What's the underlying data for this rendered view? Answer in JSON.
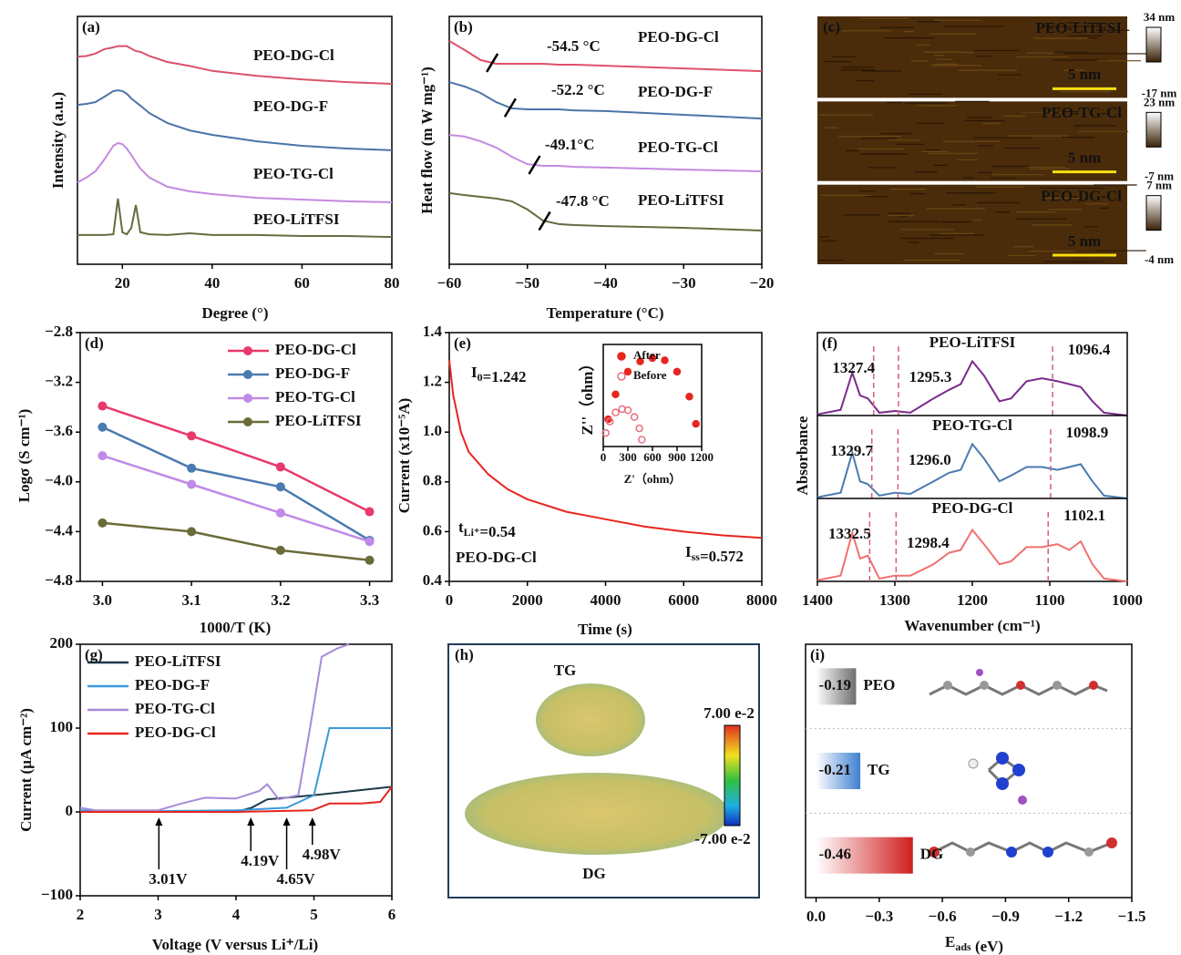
{
  "chart_data": [
    {
      "type": "line",
      "panel": "(a)",
      "xlabel": "Degree (°)",
      "ylabel": "Intensity (a.u.)",
      "xlim": [
        10,
        80
      ],
      "ylim": [
        0,
        100
      ],
      "xticks": [
        20,
        40,
        60,
        80
      ],
      "x": [
        10,
        12,
        14,
        16,
        18,
        19,
        20,
        21,
        22,
        23,
        24,
        26,
        30,
        35,
        40,
        50,
        60,
        70,
        80
      ],
      "series": [
        {
          "name": "PEO-DG-Cl",
          "color": "#d9536a",
          "values": [
            83.8,
            84,
            85,
            86.8,
            87.5,
            88,
            88,
            88,
            87,
            86,
            85.7,
            84,
            81.6,
            80,
            78,
            76,
            74.6,
            73.5,
            72.8
          ]
        },
        {
          "name": "PEO-DG-F",
          "color": "#4a74a8",
          "values": [
            64.3,
            64.7,
            65.4,
            67.6,
            69.9,
            70.2,
            69.9,
            68.8,
            66.9,
            65.4,
            64,
            61,
            57,
            54,
            52.2,
            49.6,
            47.8,
            46.7,
            46
          ]
        },
        {
          "name": "PEO-TG-Cl",
          "color": "#c48ae0",
          "values": [
            33,
            35,
            37.5,
            42.3,
            47.8,
            48.9,
            48.5,
            46.7,
            44.1,
            41.2,
            38.6,
            35,
            31.3,
            29.4,
            28.3,
            26.8,
            26.1,
            25.4,
            25
          ]
        },
        {
          "name": "PEO-LiTFSI",
          "color": "#6a6a40",
          "values": [
            11.8,
            11.8,
            11.8,
            11.8,
            12.1,
            26.5,
            12.9,
            12.1,
            14.7,
            23.9,
            12.9,
            12.1,
            11.8,
            12.5,
            11.8,
            11.8,
            11.4,
            11.4,
            11
          ]
        }
      ]
    },
    {
      "type": "line",
      "panel": "(b)",
      "xlabel": "Temperature (°C)",
      "ylabel": "Heat flow (m W mg⁻¹)",
      "xlim": [
        -60,
        -20
      ],
      "ylim": [
        0,
        100
      ],
      "xticks": [
        {
          "value": -60,
          "label": "−60"
        },
        {
          "value": -50,
          "label": "−50"
        },
        {
          "value": -40,
          "label": "−40"
        },
        {
          "value": -30,
          "label": "−30"
        },
        {
          "value": -20,
          "label": "−20"
        }
      ],
      "x": [
        -60,
        -58,
        -56,
        -54,
        -52,
        -50,
        -48,
        -46,
        -44,
        -40,
        -30,
        -20
      ],
      "series": [
        {
          "name": "PEO-DG-Cl",
          "color": "#e0506a",
          "label": "-54.5 °C",
          "values": [
            90.1,
            86.4,
            82.4,
            80.9,
            80.9,
            80.9,
            80.9,
            80.5,
            80.5,
            80.1,
            79,
            77.9
          ]
        },
        {
          "name": "PEO-DG-F",
          "color": "#4a74a8",
          "label": "-52.2 °C",
          "values": [
            73.5,
            71.7,
            69.1,
            65.4,
            62.9,
            62.5,
            62.5,
            62.5,
            62.1,
            61.8,
            60.3,
            58.8
          ]
        },
        {
          "name": "PEO-TG-Cl",
          "color": "#c48ae0",
          "label": "-49.1°C",
          "values": [
            52.2,
            51.5,
            49.6,
            47.1,
            43.4,
            40.4,
            39.7,
            39.7,
            39.3,
            39,
            38.2,
            37.5
          ]
        },
        {
          "name": "PEO-LiTFSI",
          "color": "#6a6a40",
          "label": "-47.8 °C",
          "values": [
            28.7,
            27.9,
            27.2,
            26.5,
            25.4,
            22.1,
            17.6,
            16.2,
            15.8,
            15.4,
            14.7,
            13.6
          ]
        }
      ]
    },
    {
      "type": "image",
      "panel": "(c)",
      "panels": [
        {
          "name": "PEO-LiTFSI",
          "scale": "5 nm",
          "cbar_max": "34 nm",
          "cbar_min": "-17 nm"
        },
        {
          "name": "PEO-TG-Cl",
          "scale": "5 nm",
          "cbar_max": "23 nm",
          "cbar_min": "-7 nm"
        },
        {
          "name": "PEO-DG-Cl",
          "scale": "5 nm",
          "cbar_max": "7 nm",
          "cbar_min": "-4 nm"
        }
      ]
    },
    {
      "type": "line",
      "panel": "(d)",
      "xlabel": "1000/T (K)",
      "ylabel": "Logσ (S cm⁻¹)",
      "xlim": [
        2.975,
        3.325
      ],
      "ylim": [
        -4.8,
        -2.8
      ],
      "markers": true,
      "legend": "upper right",
      "xticks": [
        {
          "value": 3.0,
          "label": "3.0"
        },
        3.1,
        3.2,
        3.3
      ],
      "yticks": [
        {
          "value": -2.8,
          "label": "−2.8"
        },
        {
          "value": -3.2,
          "label": "−3.2"
        },
        {
          "value": -3.6,
          "label": "−3.6"
        },
        {
          "value": -4.0,
          "label": "−4.0"
        },
        {
          "value": -4.4,
          "label": "−4.4"
        },
        {
          "value": -4.8,
          "label": "−4.8"
        }
      ],
      "x": [
        3.0,
        3.1,
        3.2,
        3.3
      ],
      "series": [
        {
          "name": "PEO-DG-Cl",
          "color": "#e8396a",
          "values": [
            -3.39,
            -3.63,
            -3.88,
            -4.24
          ]
        },
        {
          "name": "PEO-DG-F",
          "color": "#4a7ab0",
          "values": [
            -3.56,
            -3.89,
            -4.04,
            -4.47
          ]
        },
        {
          "name": "PEO-TG-Cl",
          "color": "#c08ae8",
          "values": [
            -3.79,
            -4.02,
            -4.25,
            -4.48
          ]
        },
        {
          "name": "PEO-LiTFSI",
          "color": "#6b6b3a",
          "values": [
            -4.33,
            -4.4,
            -4.55,
            -4.63
          ]
        }
      ]
    },
    {
      "type": "line",
      "panel": "(e)",
      "xlabel": "Time (s)",
      "ylabel": "Current (x10⁻⁵A)",
      "xlim": [
        0,
        8000
      ],
      "ylim": [
        0.4,
        1.4
      ],
      "xticks": [
        0,
        2000,
        4000,
        6000,
        8000
      ],
      "yticks": [
        0.4,
        0.6,
        0.8,
        {
          "value": 1.0,
          "label": "1.0"
        },
        1.2,
        1.4
      ],
      "x": [
        0,
        100,
        300,
        500,
        1000,
        1500,
        2000,
        3000,
        4000,
        5000,
        6000,
        7000,
        8000
      ],
      "series": [
        {
          "name": "PEO-DG-Cl",
          "color": "#e8251f",
          "values": [
            1.29,
            1.15,
            1.0,
            0.92,
            0.83,
            0.77,
            0.73,
            0.68,
            0.65,
            0.62,
            0.6,
            0.585,
            0.575
          ]
        }
      ],
      "annotations": [
        {
          "text": "I",
          "sub": "0",
          "tail": "=1.242",
          "color": "#e8251f"
        },
        {
          "text": "t",
          "sub": "Li⁺",
          "tail": "=0.54",
          "color": "#e87080"
        },
        {
          "text": "I",
          "sub": "ss",
          "tail": "=0.572",
          "color": "#e8251f"
        }
      ],
      "inset": {
        "type": "scatter",
        "xlabel": "Z'（ohm）",
        "ylabel": "Z''（ohm）",
        "xlim": [
          0,
          1200
        ],
        "ylim": [
          0,
          450
        ],
        "xticks": [
          0,
          300,
          600,
          900,
          1200
        ],
        "series": [
          {
            "name": "After",
            "color": "#e8251f",
            "x": [
              60,
              150,
              300,
              450,
              600,
              750,
              900,
              1050,
              1130
            ],
            "values": [
              120,
              230,
              330,
              375,
              390,
              380,
              330,
              220,
              100
            ]
          },
          {
            "name": "Before",
            "color": "#e87080",
            "hollow": true,
            "x": [
              30,
              80,
              150,
              230,
              300,
              380,
              440,
              470
            ],
            "values": [
              60,
              110,
              150,
              165,
              160,
              130,
              80,
              30
            ]
          }
        ]
      }
    },
    {
      "type": "spectra",
      "panel": "(f)",
      "xlabel": "Wavenumber (cm⁻¹)",
      "ylabel": "Absorbance",
      "xlim": [
        1400,
        1000
      ],
      "ylim": [
        0,
        1.1
      ],
      "xticks": [
        1400,
        1300,
        1200,
        1100,
        1000
      ],
      "x": [
        1400,
        1370,
        1355,
        1345,
        1335,
        1320,
        1300,
        1280,
        1250,
        1230,
        1215,
        1200,
        1185,
        1165,
        1150,
        1130,
        1110,
        1090,
        1075,
        1060,
        1045,
        1030,
        1000
      ],
      "series": [
        {
          "name": "PEO-LiTFSI",
          "color": "#7a2b8c",
          "peaks": [
            "1327.4",
            "1295.3",
            "1096.4"
          ],
          "values": [
            0.02,
            0.1,
            0.75,
            0.35,
            0.3,
            0.05,
            0.08,
            0.05,
            0.3,
            0.45,
            0.55,
            0.95,
            0.7,
            0.25,
            0.3,
            0.6,
            0.65,
            0.6,
            0.55,
            0.5,
            0.25,
            0.05,
            0
          ]
        },
        {
          "name": "PEO-TG-Cl",
          "color": "#4a7ab0",
          "peaks": [
            "1329.7",
            "1296.0",
            "1098.9"
          ],
          "values": [
            0.02,
            0.1,
            0.8,
            0.3,
            0.25,
            0.05,
            0.1,
            0.08,
            0.3,
            0.45,
            0.5,
            0.95,
            0.7,
            0.3,
            0.4,
            0.55,
            0.55,
            0.5,
            0.55,
            0.6,
            0.3,
            0.05,
            0
          ]
        },
        {
          "name": "PEO-DG-Cl",
          "color": "#f07070",
          "peaks": [
            "1332.5",
            "1298.4",
            "1102.1"
          ],
          "values": [
            0.02,
            0.1,
            0.85,
            0.4,
            0.45,
            0.05,
            0.1,
            0.1,
            0.3,
            0.5,
            0.55,
            0.9,
            0.65,
            0.3,
            0.35,
            0.6,
            0.6,
            0.65,
            0.55,
            0.7,
            0.3,
            0.05,
            0
          ]
        }
      ]
    },
    {
      "type": "line",
      "panel": "(g)",
      "xlabel": "Voltage (V versus Li⁺/Li)",
      "ylabel": "Current (μA cm⁻²)",
      "xlim": [
        2,
        6
      ],
      "ylim": [
        -100,
        200
      ],
      "legend": "upper left",
      "xticks": [
        2,
        3,
        4,
        5,
        6
      ],
      "yticks": [
        {
          "value": -100,
          "label": "−100"
        },
        0,
        100,
        200
      ],
      "series": [
        {
          "name": "PEO-LiTFSI",
          "color": "#1f3a4a",
          "x": [
            2,
            3,
            4,
            4.2,
            4.4,
            5,
            5.5,
            6
          ],
          "values": [
            0,
            0,
            0,
            5,
            15,
            20,
            25,
            30
          ]
        },
        {
          "name": "PEO-DG-F",
          "color": "#3a9ad9",
          "x": [
            2,
            3,
            4,
            4.65,
            5,
            5.15,
            5.2,
            6
          ],
          "values": [
            2,
            1,
            2,
            5,
            20,
            80,
            100,
            100
          ]
        },
        {
          "name": "PEO-TG-Cl",
          "color": "#a78bd8",
          "x": [
            2,
            2.2,
            3,
            3.3,
            3.6,
            4.0,
            4.3,
            4.4,
            4.55,
            4.8,
            4.95,
            5.1,
            5.3,
            5.45
          ],
          "values": [
            5,
            2,
            2,
            10,
            17,
            16,
            25,
            33,
            15,
            20,
            100,
            185,
            195,
            200
          ]
        },
        {
          "name": "PEO-DG-Cl",
          "color": "#e8251f",
          "x": [
            2,
            3,
            4,
            4.98,
            5.2,
            5.6,
            5.85,
            6
          ],
          "values": [
            0,
            0,
            0,
            2,
            10,
            10,
            12,
            30
          ]
        }
      ],
      "annotations": [
        "3.01V",
        "4.19V",
        "4.65V",
        "4.98V"
      ]
    },
    {
      "type": "image",
      "panel": "(h)",
      "labels": [
        "TG",
        "DG"
      ],
      "cbar_max": "7.00 e-2",
      "cbar_min": "-7.00 e-2"
    },
    {
      "type": "hbar",
      "panel": "(i)",
      "xlabel": "E",
      "xlabel_sub": "ads",
      "xlabel_tail": " (eV)",
      "xlim": [
        0.05,
        -1.5
      ],
      "xticks": [
        {
          "value": 0,
          "label": "0.0"
        },
        {
          "value": -0.3,
          "label": "−0.3"
        },
        {
          "value": -0.6,
          "label": "−0.6"
        },
        {
          "value": -0.9,
          "label": "−0.9"
        },
        {
          "value": -1.2,
          "label": "−1.2"
        },
        {
          "value": -1.5,
          "label": "−1.5"
        }
      ],
      "categories": [
        "PEO",
        "TG",
        "DG"
      ],
      "values": [
        -0.19,
        -0.21,
        -0.46
      ],
      "colors": [
        "#6e6e6e",
        "#3f7fd0",
        "#d01e1e"
      ]
    }
  ]
}
